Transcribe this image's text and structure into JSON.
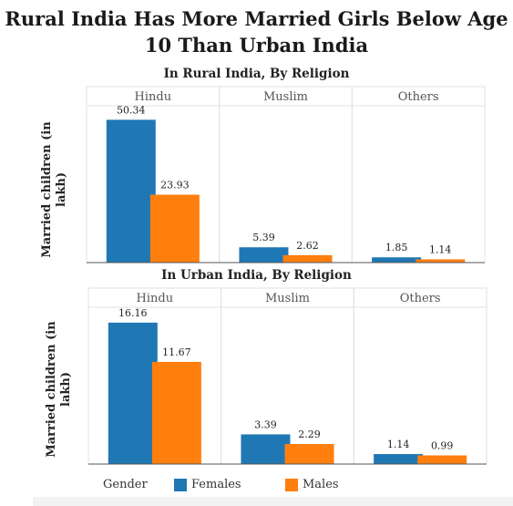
{
  "title_line1": "Rural India Has More Married Girls Below Age",
  "title_line2": "10 Than Urban India",
  "legend": {
    "title": "Gender",
    "items": [
      {
        "label": "Females",
        "color": "#1f77b4"
      },
      {
        "label": "Males",
        "color": "#ff7f0e"
      }
    ]
  },
  "chart_data": [
    {
      "type": "bar",
      "title": "In Rural India, By Religion",
      "ylabel": "Married children (in lakh)",
      "facets": [
        "Hindu",
        "Muslim",
        "Others"
      ],
      "series": [
        {
          "name": "Females",
          "values": [
            50.34,
            5.39,
            1.85
          ],
          "labels": [
            "50.34",
            "5.39",
            "1.85"
          ]
        },
        {
          "name": "Males",
          "values": [
            23.93,
            2.62,
            1.14
          ],
          "labels": [
            "23.93",
            "2.62",
            "1.14"
          ]
        }
      ],
      "ylim": [
        0,
        54
      ]
    },
    {
      "type": "bar",
      "title": "In Urban India, By Religion",
      "ylabel": "Married children (in lakh)",
      "facets": [
        "Hindu",
        "Muslim",
        "Others"
      ],
      "series": [
        {
          "name": "Females",
          "values": [
            16.16,
            3.39,
            1.14
          ],
          "labels": [
            "16.16",
            "3.39",
            "1.14"
          ]
        },
        {
          "name": "Males",
          "values": [
            11.67,
            2.29,
            0.99
          ],
          "labels": [
            "11.67",
            "2.29",
            "0.99"
          ]
        }
      ],
      "ylim": [
        0,
        17.5
      ]
    }
  ]
}
